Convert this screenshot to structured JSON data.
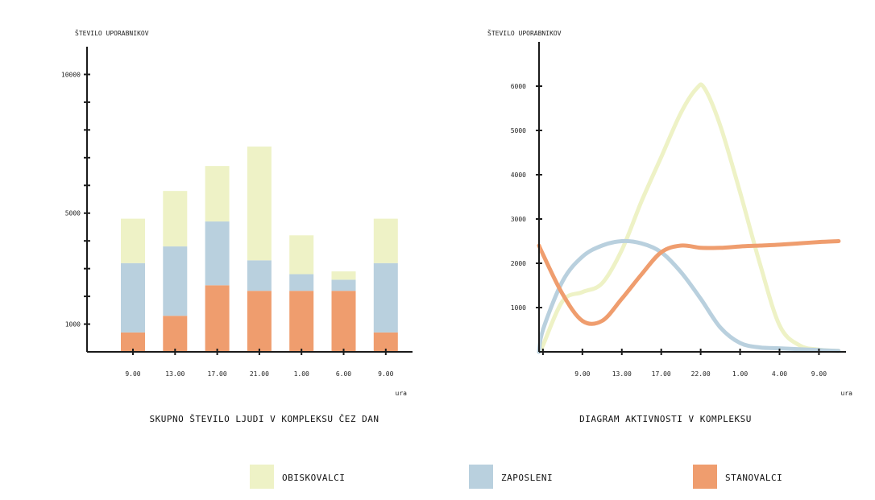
{
  "colors": {
    "obiskovalci": "#eef2c6",
    "zaposleni": "#b9d0de",
    "stanovalci": "#ef9d6e",
    "axis": "#1a1a1a"
  },
  "chart_data": [
    {
      "type": "bar",
      "stacked": true,
      "title": "SKUPNO ŠTEVILO LJUDI V KOMPLEKSU ČEZ DAN",
      "ylabel": "ŠTEVILO UPORABNIKOV",
      "xlabel": "",
      "x_unit": "ura",
      "categories": [
        "9.00",
        "13.00",
        "17.00",
        "21.00",
        "1.00",
        "6.00",
        "9.00"
      ],
      "ylim": [
        0,
        11000
      ],
      "yticks": [
        1000,
        5000,
        10000
      ],
      "series": [
        {
          "key": "stanovalci",
          "name": "STANOVALCI",
          "values": [
            700,
            1300,
            2400,
            2200,
            2200,
            2200,
            700
          ]
        },
        {
          "key": "zaposleni",
          "name": "ZAPOSLENI",
          "values": [
            2500,
            2500,
            2300,
            1100,
            600,
            400,
            2500
          ]
        },
        {
          "key": "obiskovalci",
          "name": "OBISKOVALCI",
          "values": [
            1600,
            2000,
            2000,
            4100,
            1400,
            300,
            1600
          ]
        }
      ]
    },
    {
      "type": "line",
      "title": "DIAGRAM AKTIVNOSTI V KOMPLEKSU",
      "ylabel": "ŠTEVILO UPORABNIKOV",
      "xlabel": "",
      "x_unit": "ura",
      "x": [
        "9.00",
        "13.00",
        "17.00",
        "22.00",
        "1.00",
        "4.00",
        "9.00"
      ],
      "ylim": [
        0,
        7000
      ],
      "yticks": [
        {
          "value": 1000,
          "label": "1000"
        },
        {
          "value": 2000,
          "label": "2000"
        },
        {
          "value": 3000,
          "label": "3000"
        },
        {
          "value": 4000,
          "label": "4000"
        },
        {
          "value": 5000,
          "label": "5000"
        },
        {
          "value": 6000,
          "label": "6000"
        }
      ],
      "series": [
        {
          "key": "obiskovalci",
          "name": "OBISKOVALCI",
          "points": [
            [
              -0.1,
              0
            ],
            [
              0,
              150
            ],
            [
              0.5,
              1150
            ],
            [
              1,
              1350
            ],
            [
              1.5,
              1550
            ],
            [
              2,
              2300
            ],
            [
              2.5,
              3400
            ],
            [
              3,
              4400
            ],
            [
              3.5,
              5400
            ],
            [
              3.9,
              5950
            ],
            [
              4.1,
              5950
            ],
            [
              4.5,
              5100
            ],
            [
              5,
              3600
            ],
            [
              5.5,
              2000
            ],
            [
              6,
              600
            ],
            [
              6.5,
              150
            ],
            [
              7,
              50
            ],
            [
              7.5,
              20
            ]
          ]
        },
        {
          "key": "zaposleni",
          "name": "ZAPOSLENI",
          "points": [
            [
              -0.1,
              0
            ],
            [
              0,
              500
            ],
            [
              0.5,
              1600
            ],
            [
              1,
              2150
            ],
            [
              1.5,
              2400
            ],
            [
              2,
              2500
            ],
            [
              2.5,
              2450
            ],
            [
              3,
              2250
            ],
            [
              3.5,
              1800
            ],
            [
              4,
              1200
            ],
            [
              4.5,
              550
            ],
            [
              5,
              200
            ],
            [
              5.5,
              100
            ],
            [
              6,
              80
            ],
            [
              6.5,
              60
            ],
            [
              7,
              40
            ],
            [
              7.5,
              20
            ]
          ]
        },
        {
          "key": "stanovalci",
          "name": "STANOVALCI",
          "points": [
            [
              -0.1,
              2400
            ],
            [
              0,
              2200
            ],
            [
              0.5,
              1300
            ],
            [
              1,
              700
            ],
            [
              1.5,
              700
            ],
            [
              2,
              1200
            ],
            [
              2.5,
              1750
            ],
            [
              3,
              2250
            ],
            [
              3.5,
              2400
            ],
            [
              4,
              2350
            ],
            [
              4.5,
              2350
            ],
            [
              5,
              2380
            ],
            [
              5.5,
              2400
            ],
            [
              6,
              2420
            ],
            [
              6.5,
              2450
            ],
            [
              7,
              2480
            ],
            [
              7.5,
              2500
            ]
          ]
        }
      ]
    }
  ],
  "legend": [
    {
      "key": "obiskovalci",
      "label": "OBISKOVALCI"
    },
    {
      "key": "zaposleni",
      "label": "ZAPOSLENI"
    },
    {
      "key": "stanovalci",
      "label": "STANOVALCI"
    }
  ]
}
